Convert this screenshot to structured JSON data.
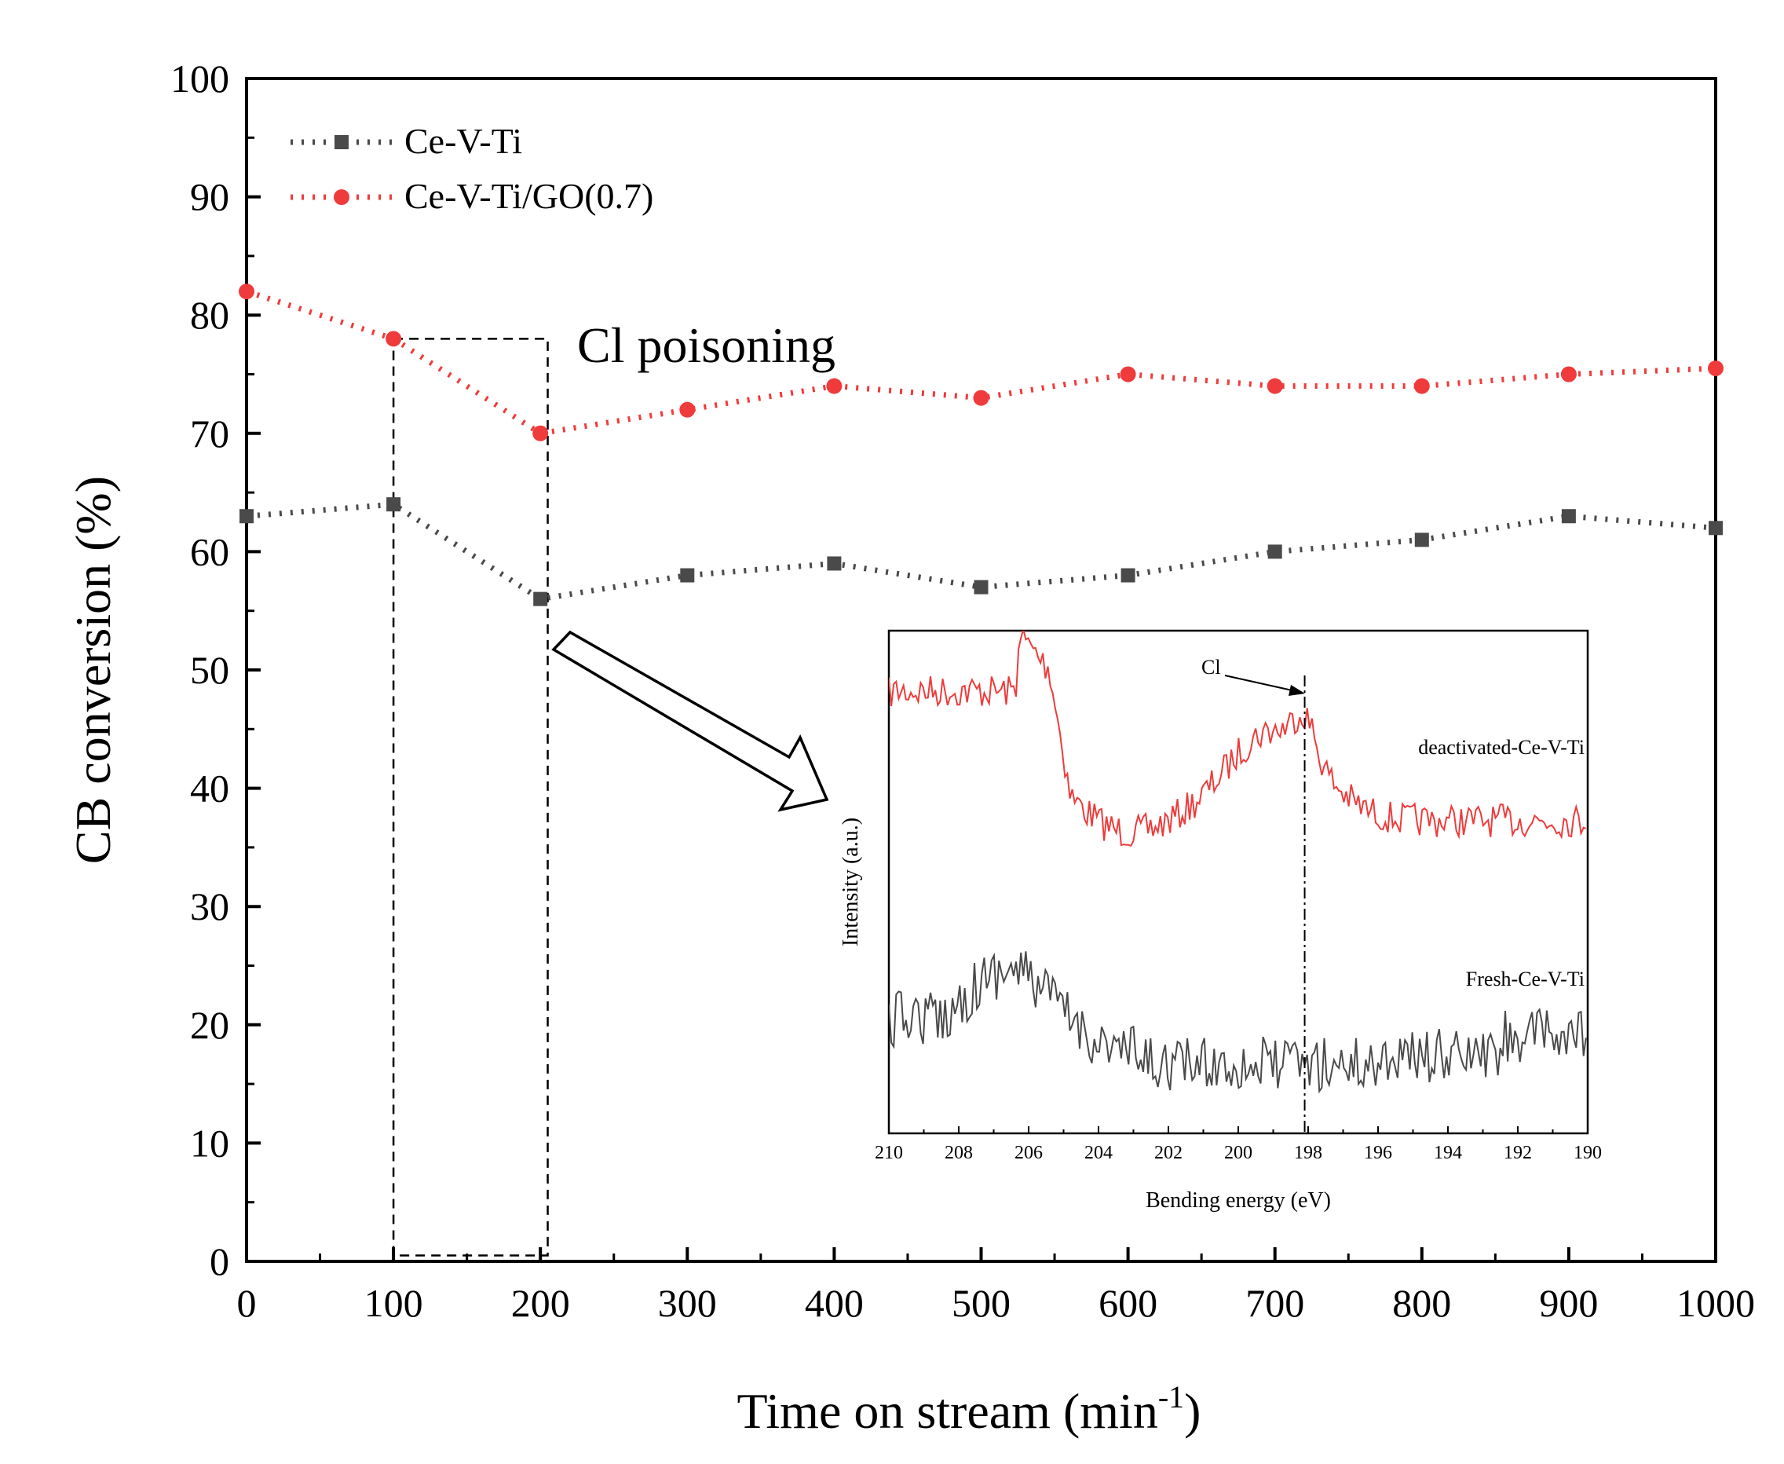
{
  "chart_data": [
    {
      "type": "line",
      "title": "",
      "xlabel": "Time on stream (min",
      "xlabel_sup": "-1",
      "xlabel_end": ")",
      "ylabel": "CB conversion (%)",
      "xlim": [
        0,
        1000
      ],
      "ylim": [
        0,
        100
      ],
      "x_ticks": [
        "0",
        "100",
        "200",
        "300",
        "400",
        "500",
        "600",
        "700",
        "800",
        "900",
        "1000"
      ],
      "y_ticks": [
        "0",
        "10",
        "20",
        "30",
        "40",
        "50",
        "60",
        "70",
        "80",
        "90",
        "100"
      ],
      "x": [
        0,
        100,
        200,
        300,
        400,
        500,
        600,
        700,
        800,
        900,
        1000
      ],
      "series": [
        {
          "name": "Ce-V-Ti",
          "color": "#4a4a4a",
          "marker": "square",
          "values": [
            63,
            64,
            56,
            58,
            59,
            57,
            58,
            60,
            61,
            63,
            62
          ]
        },
        {
          "name": "Ce-V-Ti/GO(0.7)",
          "color": "#ef3b3b",
          "marker": "circle",
          "values": [
            82,
            78,
            70,
            72,
            74,
            73,
            75,
            74,
            74,
            75,
            75.5
          ]
        }
      ],
      "legend": "top-left",
      "annotations": [
        {
          "text": "Cl poisoning",
          "x_range": [
            100,
            205
          ],
          "y_range": [
            0.5,
            78
          ]
        }
      ]
    },
    {
      "type": "line",
      "title": "",
      "xlabel": "Bending energy (eV)",
      "ylabel": "Intensity (a.u.)",
      "xlim": [
        210,
        190
      ],
      "x_ticks": [
        "210",
        "208",
        "206",
        "204",
        "202",
        "200",
        "198",
        "196",
        "194",
        "192",
        "190"
      ],
      "series": [
        {
          "name": "deactivated-Ce-V-Ti",
          "color": "#ef3b3b"
        },
        {
          "name": "Fresh-Ce-V-Ti",
          "color": "#4a4a4a"
        }
      ],
      "marker_line_x": 198.1,
      "annotations": [
        {
          "text": "Cl",
          "x": 198.1
        }
      ]
    }
  ]
}
